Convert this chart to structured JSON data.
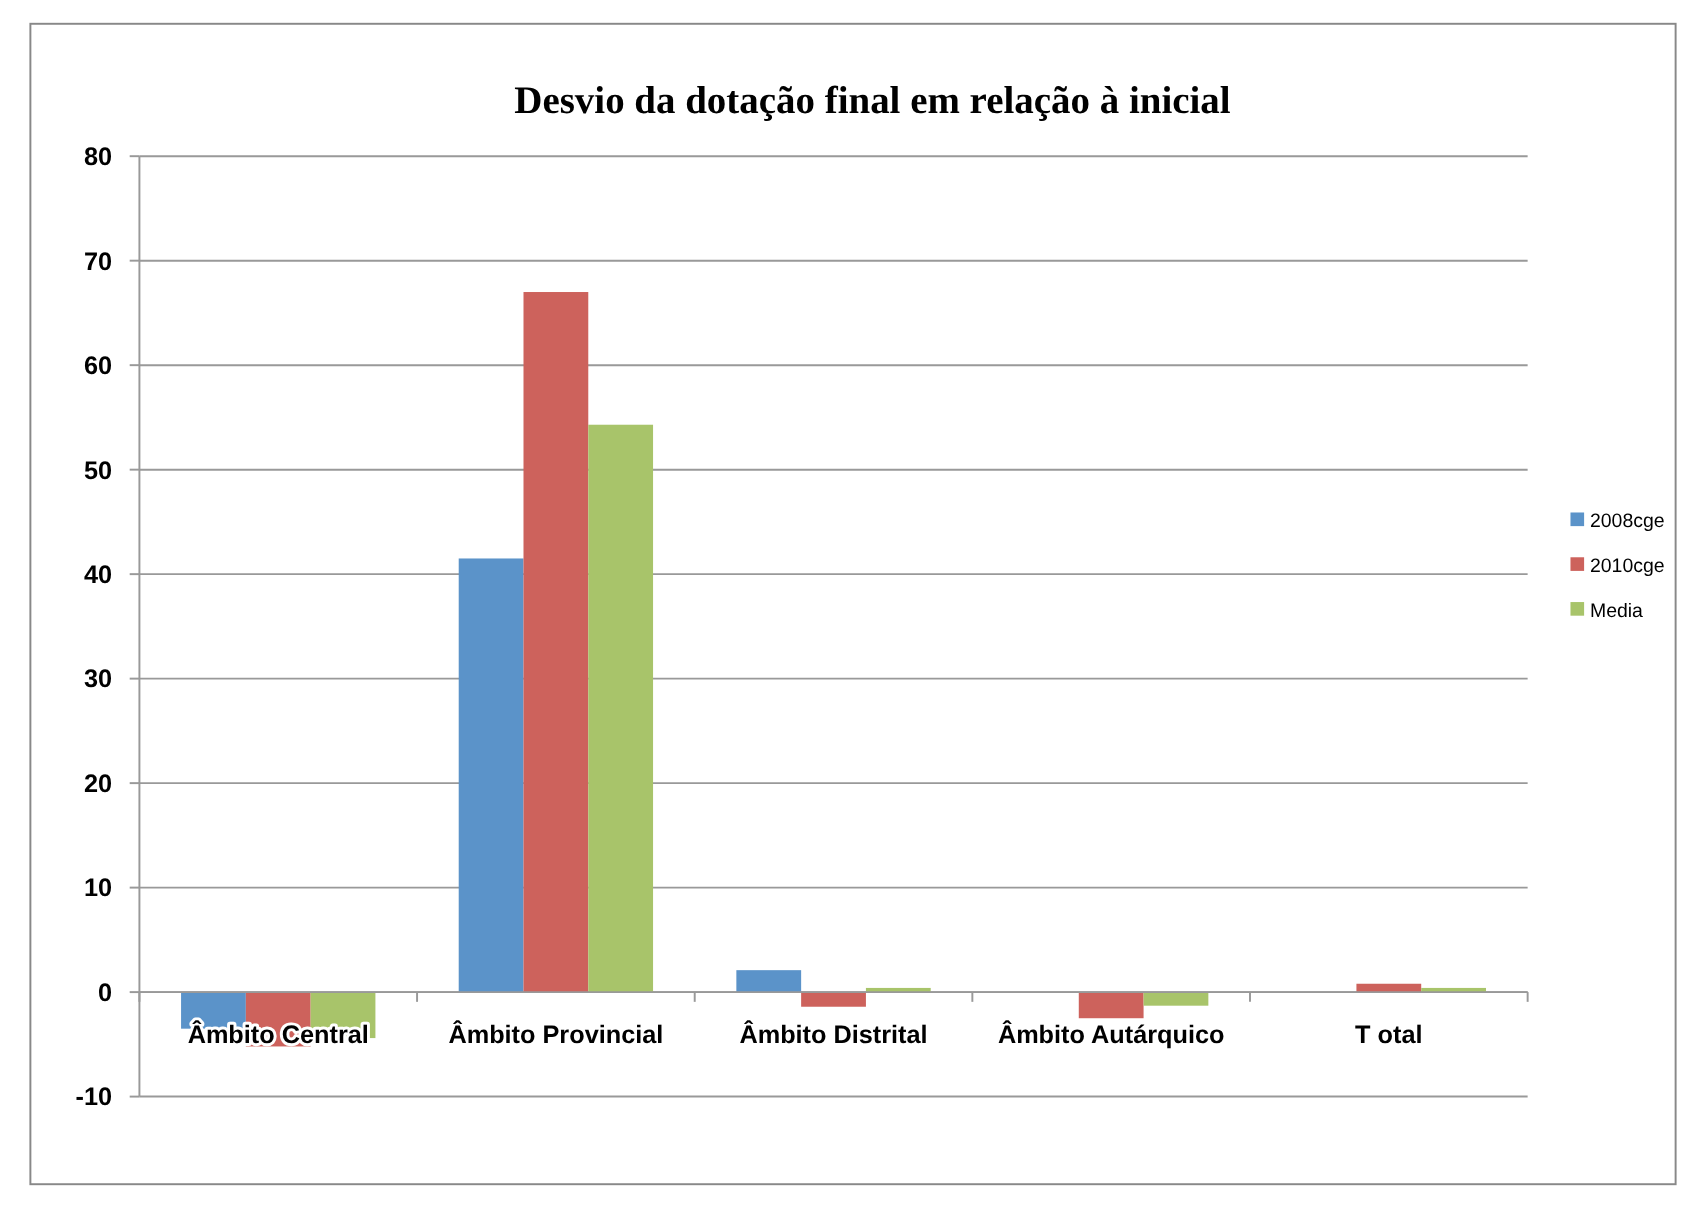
{
  "chart_data": {
    "type": "bar",
    "title": "Desvio da dotação final em relação à inicial",
    "categories": [
      "Âmbito Central",
      "Âmbito Provincial",
      "Âmbito Distrital",
      "Âmbito Autárquico",
      "T otal"
    ],
    "series": [
      {
        "name": "2008cge",
        "color": "#5b93c9",
        "values": [
          -3.5,
          41.5,
          2.1,
          0,
          0
        ]
      },
      {
        "name": "2010cge",
        "color": "#cd625c",
        "values": [
          -5.2,
          67,
          -1.4,
          -2.5,
          0.8
        ]
      },
      {
        "name": "Media",
        "color": "#a8c46a",
        "values": [
          -4.4,
          54.3,
          0.4,
          -1.3,
          0.4
        ]
      }
    ],
    "ylim": [
      -10,
      80
    ],
    "yticks": [
      -10,
      0,
      10,
      20,
      30,
      40,
      50,
      60,
      70,
      80
    ],
    "grid": "y",
    "legend": "right"
  }
}
